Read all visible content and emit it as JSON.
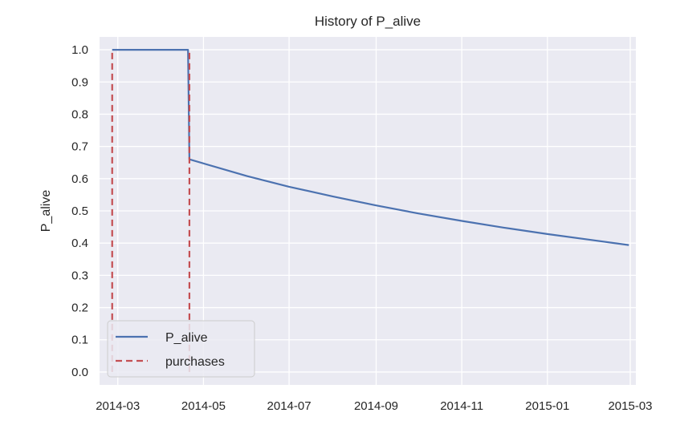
{
  "chart_data": {
    "type": "line",
    "title": "History of P_alive",
    "xlabel": "",
    "ylabel": "P_alive",
    "x_type": "date",
    "xlim": [
      "2014-02-16",
      "2015-03-05"
    ],
    "ylim": [
      -0.04,
      1.04
    ],
    "x_ticks": [
      "2014-03",
      "2014-05",
      "2014-07",
      "2014-09",
      "2014-11",
      "2015-01",
      "2015-03"
    ],
    "x_tick_dates": [
      "2014-03-01",
      "2014-05-01",
      "2014-07-01",
      "2014-09-01",
      "2014-11-01",
      "2015-01-01",
      "2015-03-01"
    ],
    "y_ticks": [
      "0.0",
      "0.1",
      "0.2",
      "0.3",
      "0.4",
      "0.5",
      "0.6",
      "0.7",
      "0.8",
      "0.9",
      "1.0"
    ],
    "y_tick_values": [
      0.0,
      0.1,
      0.2,
      0.3,
      0.4,
      0.5,
      0.6,
      0.7,
      0.8,
      0.9,
      1.0
    ],
    "grid": true,
    "background": "#eaeaf2",
    "legend_position": "lower-left",
    "series": [
      {
        "name": "P_alive",
        "style": "solid",
        "color": "#4c72b0",
        "points": [
          {
            "x": "2014-02-25",
            "y": 1.0
          },
          {
            "x": "2014-04-20",
            "y": 1.0
          },
          {
            "x": "2014-04-21",
            "y": 0.66
          },
          {
            "x": "2014-06-01",
            "y": 0.608
          },
          {
            "x": "2014-07-01",
            "y": 0.575
          },
          {
            "x": "2014-08-01",
            "y": 0.545
          },
          {
            "x": "2014-09-01",
            "y": 0.517
          },
          {
            "x": "2014-10-01",
            "y": 0.492
          },
          {
            "x": "2014-11-01",
            "y": 0.469
          },
          {
            "x": "2014-12-01",
            "y": 0.448
          },
          {
            "x": "2015-01-01",
            "y": 0.428
          },
          {
            "x": "2015-02-01",
            "y": 0.41
          },
          {
            "x": "2015-02-28",
            "y": 0.394
          }
        ]
      },
      {
        "name": "purchases",
        "style": "dashed",
        "color": "#c44e52",
        "vlines": [
          "2014-02-25",
          "2014-04-21"
        ],
        "y_range": [
          0.0,
          1.0
        ]
      }
    ]
  }
}
